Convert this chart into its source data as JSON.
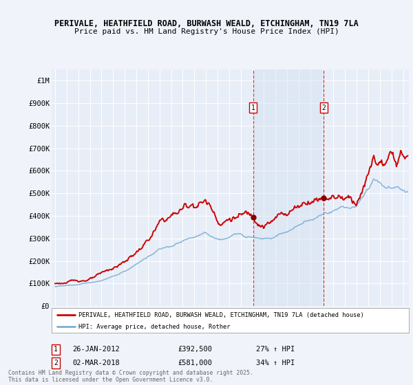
{
  "title_line1": "PERIVALE, HEATHFIELD ROAD, BURWASH WEALD, ETCHINGHAM, TN19 7LA",
  "title_line2": "Price paid vs. HM Land Registry's House Price Index (HPI)",
  "bg_color": "#f0f4fa",
  "plot_bg_color": "#e8eef8",
  "grid_color": "#ffffff",
  "red_line_color": "#cc0000",
  "blue_line_color": "#7bafd4",
  "ylim": [
    0,
    1050000
  ],
  "yticks": [
    0,
    100000,
    200000,
    300000,
    400000,
    500000,
    600000,
    700000,
    800000,
    900000,
    1000000
  ],
  "ytick_labels": [
    "£0",
    "£100K",
    "£200K",
    "£300K",
    "£400K",
    "£500K",
    "£600K",
    "£700K",
    "£800K",
    "£900K",
    "£1M"
  ],
  "xlim_start": 1994.7,
  "xlim_end": 2025.5,
  "sale1_x": 2012.07,
  "sale1_y": 392500,
  "sale1_label": "1",
  "sale2_x": 2018.17,
  "sale2_y": 581000,
  "sale2_label": "2",
  "legend_line1": "PERIVALE, HEATHFIELD ROAD, BURWASH WEALD, ETCHINGHAM, TN19 7LA (detached house)",
  "legend_line2": "HPI: Average price, detached house, Rother",
  "footer": "Contains HM Land Registry data © Crown copyright and database right 2025.\nThis data is licensed under the Open Government Licence v3.0.",
  "shade_x1": 2012.07,
  "shade_x2": 2018.17,
  "marker1_y": 392500,
  "marker2_y": 581000
}
